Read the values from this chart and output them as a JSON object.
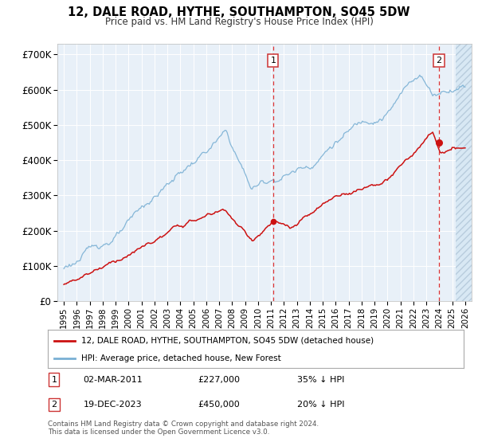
{
  "title": "12, DALE ROAD, HYTHE, SOUTHAMPTON, SO45 5DW",
  "subtitle": "Price paid vs. HM Land Registry's House Price Index (HPI)",
  "ytick_labels": [
    "£0",
    "£100K",
    "£200K",
    "£300K",
    "£400K",
    "£500K",
    "£600K",
    "£700K"
  ],
  "yticks": [
    0,
    100000,
    200000,
    300000,
    400000,
    500000,
    600000,
    700000
  ],
  "ylim": [
    0,
    730000
  ],
  "xlim": [
    1994.5,
    2026.5
  ],
  "hpi_color": "#7ab0d4",
  "price_color": "#cc1111",
  "annotation1_date": 2011.17,
  "annotation1_price": 227000,
  "annotation2_date": 2023.97,
  "annotation2_price": 450000,
  "legend_label1": "12, DALE ROAD, HYTHE, SOUTHAMPTON, SO45 5DW (detached house)",
  "legend_label2": "HPI: Average price, detached house, New Forest",
  "ann1_info": "02-MAR-2011",
  "ann1_price_str": "£227,000",
  "ann1_pct": "35% ↓ HPI",
  "ann2_info": "19-DEC-2023",
  "ann2_price_str": "£450,000",
  "ann2_pct": "20% ↓ HPI",
  "footer": "Contains HM Land Registry data © Crown copyright and database right 2024.\nThis data is licensed under the Open Government Licence v3.0.",
  "bg_color": "#e8f0f8",
  "hatch_bg": "#d8e8f4",
  "grid_color": "#ffffff",
  "xtick_years": [
    1995,
    1996,
    1997,
    1998,
    1999,
    2000,
    2001,
    2002,
    2003,
    2004,
    2005,
    2006,
    2007,
    2008,
    2009,
    2010,
    2011,
    2012,
    2013,
    2014,
    2015,
    2016,
    2017,
    2018,
    2019,
    2020,
    2021,
    2022,
    2023,
    2024,
    2025,
    2026
  ]
}
